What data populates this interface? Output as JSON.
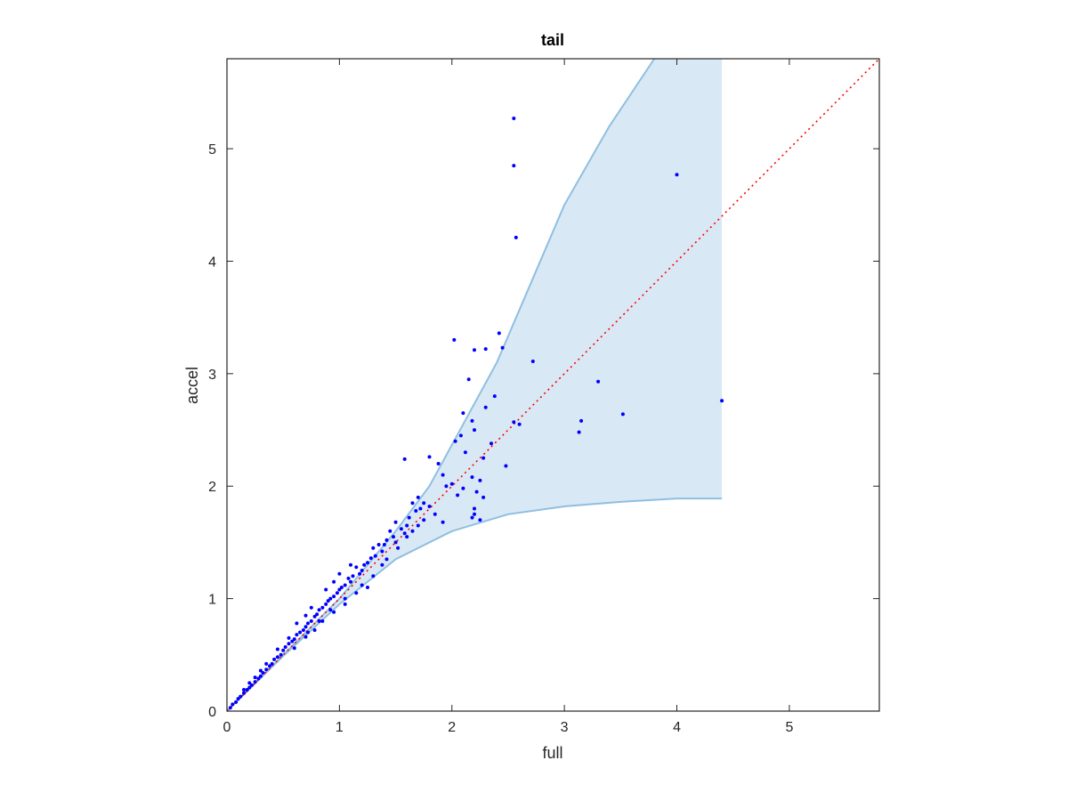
{
  "chart_data": {
    "type": "scatter",
    "title": "tail",
    "xlabel": "full",
    "ylabel": "accel",
    "xlim": [
      0,
      5.8
    ],
    "ylim": [
      0,
      5.8
    ],
    "xticks": [
      "0",
      "1",
      "2",
      "3",
      "4",
      "5"
    ],
    "yticks": [
      "0",
      "1",
      "2",
      "3",
      "4",
      "5"
    ],
    "grid": false,
    "legend": "none",
    "colors": {
      "points": "#0000ff",
      "reference_line": "#ff0000",
      "band_fill": "#d9e8f5",
      "band_edge": "#8fbfe0",
      "axes": "#262626"
    },
    "reference_line": {
      "style": "dotted",
      "x": [
        0,
        5.8
      ],
      "y": [
        0,
        5.8
      ]
    },
    "band": {
      "upper": [
        [
          0,
          0
        ],
        [
          0.5,
          0.5
        ],
        [
          1,
          1
        ],
        [
          1.5,
          1.6
        ],
        [
          1.8,
          2.0
        ],
        [
          2.1,
          2.55
        ],
        [
          2.4,
          3.1
        ],
        [
          2.7,
          3.8
        ],
        [
          3.0,
          4.5
        ],
        [
          3.4,
          5.2
        ],
        [
          3.8,
          5.8
        ],
        [
          4.4,
          5.8
        ]
      ],
      "lower": [
        [
          0,
          0
        ],
        [
          0.5,
          0.49
        ],
        [
          1,
          0.95
        ],
        [
          1.5,
          1.35
        ],
        [
          2.0,
          1.6
        ],
        [
          2.5,
          1.75
        ],
        [
          3.0,
          1.82
        ],
        [
          3.5,
          1.86
        ],
        [
          4.0,
          1.89
        ],
        [
          4.4,
          1.89
        ]
      ]
    },
    "points": [
      [
        2.55,
        5.27
      ],
      [
        2.55,
        4.85
      ],
      [
        2.57,
        4.21
      ],
      [
        4.0,
        4.77
      ],
      [
        4.4,
        2.76
      ],
      [
        3.3,
        2.93
      ],
      [
        3.52,
        2.64
      ],
      [
        3.15,
        2.58
      ],
      [
        3.13,
        2.48
      ],
      [
        2.72,
        3.11
      ],
      [
        2.42,
        3.36
      ],
      [
        2.45,
        3.23
      ],
      [
        2.3,
        3.22
      ],
      [
        2.2,
        3.21
      ],
      [
        2.02,
        3.3
      ],
      [
        2.15,
        2.95
      ],
      [
        2.38,
        2.8
      ],
      [
        2.3,
        2.7
      ],
      [
        2.1,
        2.65
      ],
      [
        2.18,
        2.58
      ],
      [
        2.6,
        2.55
      ],
      [
        2.55,
        2.57
      ],
      [
        2.08,
        2.45
      ],
      [
        2.03,
        2.4
      ],
      [
        2.2,
        2.5
      ],
      [
        2.35,
        2.38
      ],
      [
        2.28,
        2.25
      ],
      [
        2.48,
        2.18
      ],
      [
        2.12,
        2.3
      ],
      [
        1.8,
        2.26
      ],
      [
        1.88,
        2.2
      ],
      [
        1.58,
        2.24
      ],
      [
        1.92,
        2.1
      ],
      [
        2.0,
        2.02
      ],
      [
        2.18,
        2.08
      ],
      [
        2.1,
        1.98
      ],
      [
        2.25,
        2.05
      ],
      [
        2.22,
        1.95
      ],
      [
        1.95,
        2.0
      ],
      [
        2.05,
        1.92
      ],
      [
        2.28,
        1.9
      ],
      [
        2.2,
        1.8
      ],
      [
        1.7,
        1.9
      ],
      [
        1.75,
        1.85
      ],
      [
        1.65,
        1.85
      ],
      [
        1.68,
        1.78
      ],
      [
        1.72,
        1.8
      ],
      [
        1.8,
        1.82
      ],
      [
        1.85,
        1.75
      ],
      [
        1.62,
        1.72
      ],
      [
        1.92,
        1.68
      ],
      [
        2.2,
        1.75
      ],
      [
        2.18,
        1.72
      ],
      [
        2.25,
        1.7
      ],
      [
        1.5,
        1.68
      ],
      [
        1.55,
        1.62
      ],
      [
        1.6,
        1.65
      ],
      [
        1.58,
        1.58
      ],
      [
        1.45,
        1.6
      ],
      [
        1.48,
        1.55
      ],
      [
        1.5,
        1.5
      ],
      [
        1.42,
        1.52
      ],
      [
        1.4,
        1.48
      ],
      [
        1.35,
        1.48
      ],
      [
        1.38,
        1.42
      ],
      [
        1.3,
        1.45
      ],
      [
        1.32,
        1.38
      ],
      [
        1.28,
        1.36
      ],
      [
        1.25,
        1.32
      ],
      [
        1.22,
        1.3
      ],
      [
        1.2,
        1.25
      ],
      [
        1.18,
        1.22
      ],
      [
        1.15,
        1.28
      ],
      [
        1.12,
        1.2
      ],
      [
        1.1,
        1.15
      ],
      [
        1.08,
        1.18
      ],
      [
        1.05,
        1.12
      ],
      [
        1.02,
        1.1
      ],
      [
        1.0,
        1.08
      ],
      [
        0.98,
        1.05
      ],
      [
        0.95,
        1.02
      ],
      [
        0.92,
        1.0
      ],
      [
        0.9,
        0.98
      ],
      [
        0.88,
        0.95
      ],
      [
        0.85,
        0.92
      ],
      [
        0.82,
        0.9
      ],
      [
        0.8,
        0.86
      ],
      [
        0.78,
        0.84
      ],
      [
        0.75,
        0.8
      ],
      [
        0.72,
        0.78
      ],
      [
        0.7,
        0.75
      ],
      [
        0.68,
        0.72
      ],
      [
        0.65,
        0.7
      ],
      [
        0.62,
        0.68
      ],
      [
        0.6,
        0.64
      ],
      [
        0.58,
        0.62
      ],
      [
        0.55,
        0.6
      ],
      [
        0.52,
        0.57
      ],
      [
        0.5,
        0.54
      ],
      [
        0.48,
        0.5
      ],
      [
        0.45,
        0.48
      ],
      [
        0.42,
        0.46
      ],
      [
        0.4,
        0.42
      ],
      [
        0.38,
        0.4
      ],
      [
        0.35,
        0.37
      ],
      [
        0.32,
        0.34
      ],
      [
        0.3,
        0.31
      ],
      [
        0.28,
        0.29
      ],
      [
        0.25,
        0.26
      ],
      [
        0.22,
        0.23
      ],
      [
        0.2,
        0.21
      ],
      [
        0.18,
        0.19
      ],
      [
        0.15,
        0.16
      ],
      [
        0.12,
        0.13
      ],
      [
        0.1,
        0.11
      ],
      [
        0.08,
        0.08
      ],
      [
        0.05,
        0.06
      ],
      [
        0.03,
        0.03
      ],
      [
        1.1,
        1.3
      ],
      [
        1.0,
        1.22
      ],
      [
        0.95,
        1.15
      ],
      [
        0.88,
        1.08
      ],
      [
        0.75,
        0.92
      ],
      [
        0.7,
        0.85
      ],
      [
        0.62,
        0.78
      ],
      [
        1.25,
        1.1
      ],
      [
        1.15,
        1.05
      ],
      [
        1.05,
        0.95
      ],
      [
        0.95,
        0.88
      ],
      [
        0.85,
        0.8
      ],
      [
        0.78,
        0.72
      ],
      [
        0.7,
        0.66
      ],
      [
        0.6,
        0.56
      ],
      [
        1.3,
        1.2
      ],
      [
        1.38,
        1.3
      ],
      [
        1.42,
        1.35
      ],
      [
        1.2,
        1.12
      ],
      [
        1.52,
        1.45
      ],
      [
        1.6,
        1.55
      ],
      [
        1.65,
        1.6
      ],
      [
        1.7,
        1.65
      ],
      [
        1.75,
        1.7
      ],
      [
        0.55,
        0.65
      ],
      [
        0.45,
        0.55
      ],
      [
        0.35,
        0.42
      ],
      [
        0.3,
        0.36
      ],
      [
        0.25,
        0.3
      ],
      [
        0.2,
        0.25
      ],
      [
        0.15,
        0.19
      ],
      [
        1.05,
        1.0
      ],
      [
        0.92,
        0.9
      ],
      [
        0.82,
        0.8
      ],
      [
        0.72,
        0.7
      ]
    ]
  }
}
